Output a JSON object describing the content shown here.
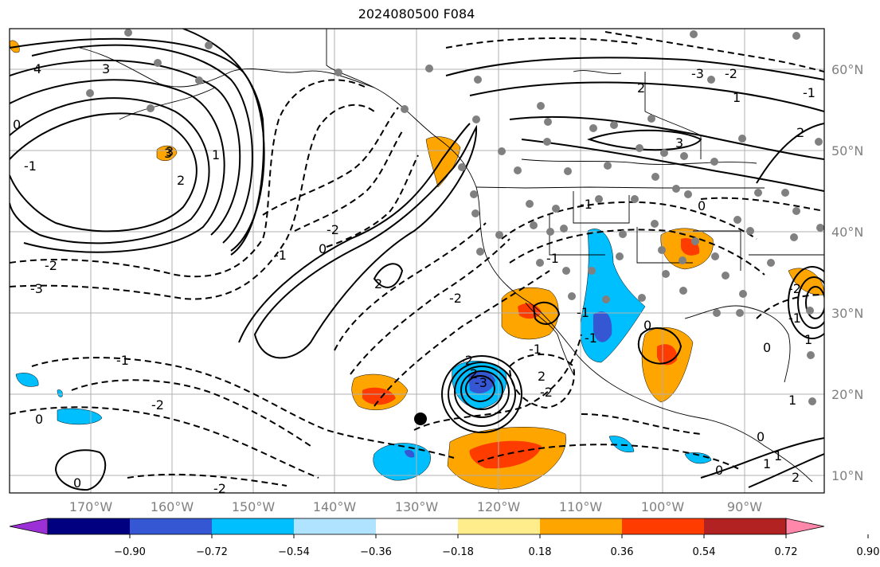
{
  "title": "2024080500 F084",
  "latitude_labels": [
    "60°N",
    "50°N",
    "40°N",
    "30°N",
    "20°N",
    "10°N"
  ],
  "longitude_labels": [
    "170°W",
    "160°W",
    "150°W",
    "140°W",
    "130°W",
    "120°W",
    "110°W",
    "100°W",
    "90°W"
  ],
  "colorbar": {
    "tick_labels": [
      "−0.90",
      "−0.72",
      "−0.54",
      "−0.36",
      "−0.18",
      "0.18",
      "0.36",
      "0.54",
      "0.72",
      "0.90"
    ],
    "colors": [
      "#9b30d6",
      "#000080",
      "#3657d4",
      "#00bfff",
      "#afe3ff",
      "#ffffff",
      "#ffec8b",
      "#ffa500",
      "#ff3c00",
      "#b22222",
      "#ff88aa"
    ]
  },
  "contour_labels": [
    "4",
    "3",
    "2",
    "1",
    "0",
    "-1",
    "-2",
    "-3",
    "-2",
    "-1",
    "0",
    "2",
    "3",
    "-1",
    "-2",
    "0",
    "-2",
    "-1",
    "2",
    "-2",
    "2",
    "-3",
    "-2",
    "-1",
    "0",
    "1",
    "0",
    "0",
    "1",
    "3",
    "2",
    "1",
    "-1",
    "-2",
    "-3",
    "3",
    "2",
    "-1",
    "0",
    "-1",
    "-2",
    "-1",
    "0",
    "1",
    "-2",
    "-1",
    "0",
    "1",
    "2"
  ]
}
